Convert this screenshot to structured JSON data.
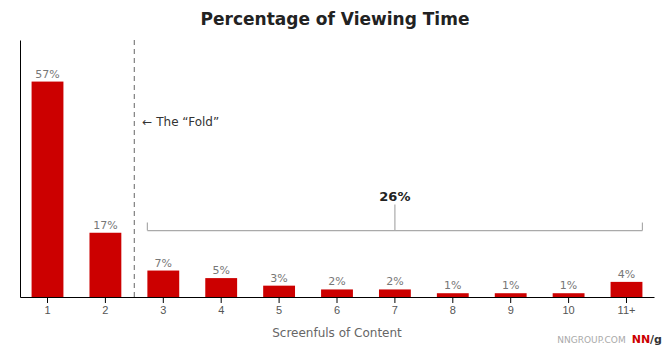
{
  "chart_data": {
    "type": "bar",
    "title": "Percentage of Viewing Time",
    "xlabel": "Screenfuls of Content",
    "categories": [
      "1",
      "2",
      "3",
      "4",
      "5",
      "6",
      "7",
      "8",
      "9",
      "10",
      "11+"
    ],
    "values": [
      57,
      17,
      7,
      5,
      3,
      2,
      2,
      1,
      1,
      1,
      4
    ],
    "value_labels": [
      "57%",
      "17%",
      "7%",
      "5%",
      "3%",
      "2%",
      "2%",
      "1%",
      "1%",
      "1%",
      "4%"
    ],
    "data_labels": true,
    "color": "#cc0000",
    "ylim": [
      0,
      68
    ],
    "yticks": [],
    "tick_labels": "x",
    "grid": false,
    "annotations": [
      {
        "type": "vline",
        "text": "← The “Fold”",
        "between": [
          "2",
          "3"
        ]
      },
      {
        "type": "bracket",
        "text": "26%",
        "from": "3",
        "to": "11+"
      },
      {
        "type": "watermark",
        "parts": [
          {
            "text": "NNGROUP.COM",
            "color": "#aaaaaa"
          },
          {
            "text": "NN",
            "color": "#cc0000"
          },
          {
            "text": "/g",
            "color": "#333333"
          }
        ]
      }
    ]
  }
}
